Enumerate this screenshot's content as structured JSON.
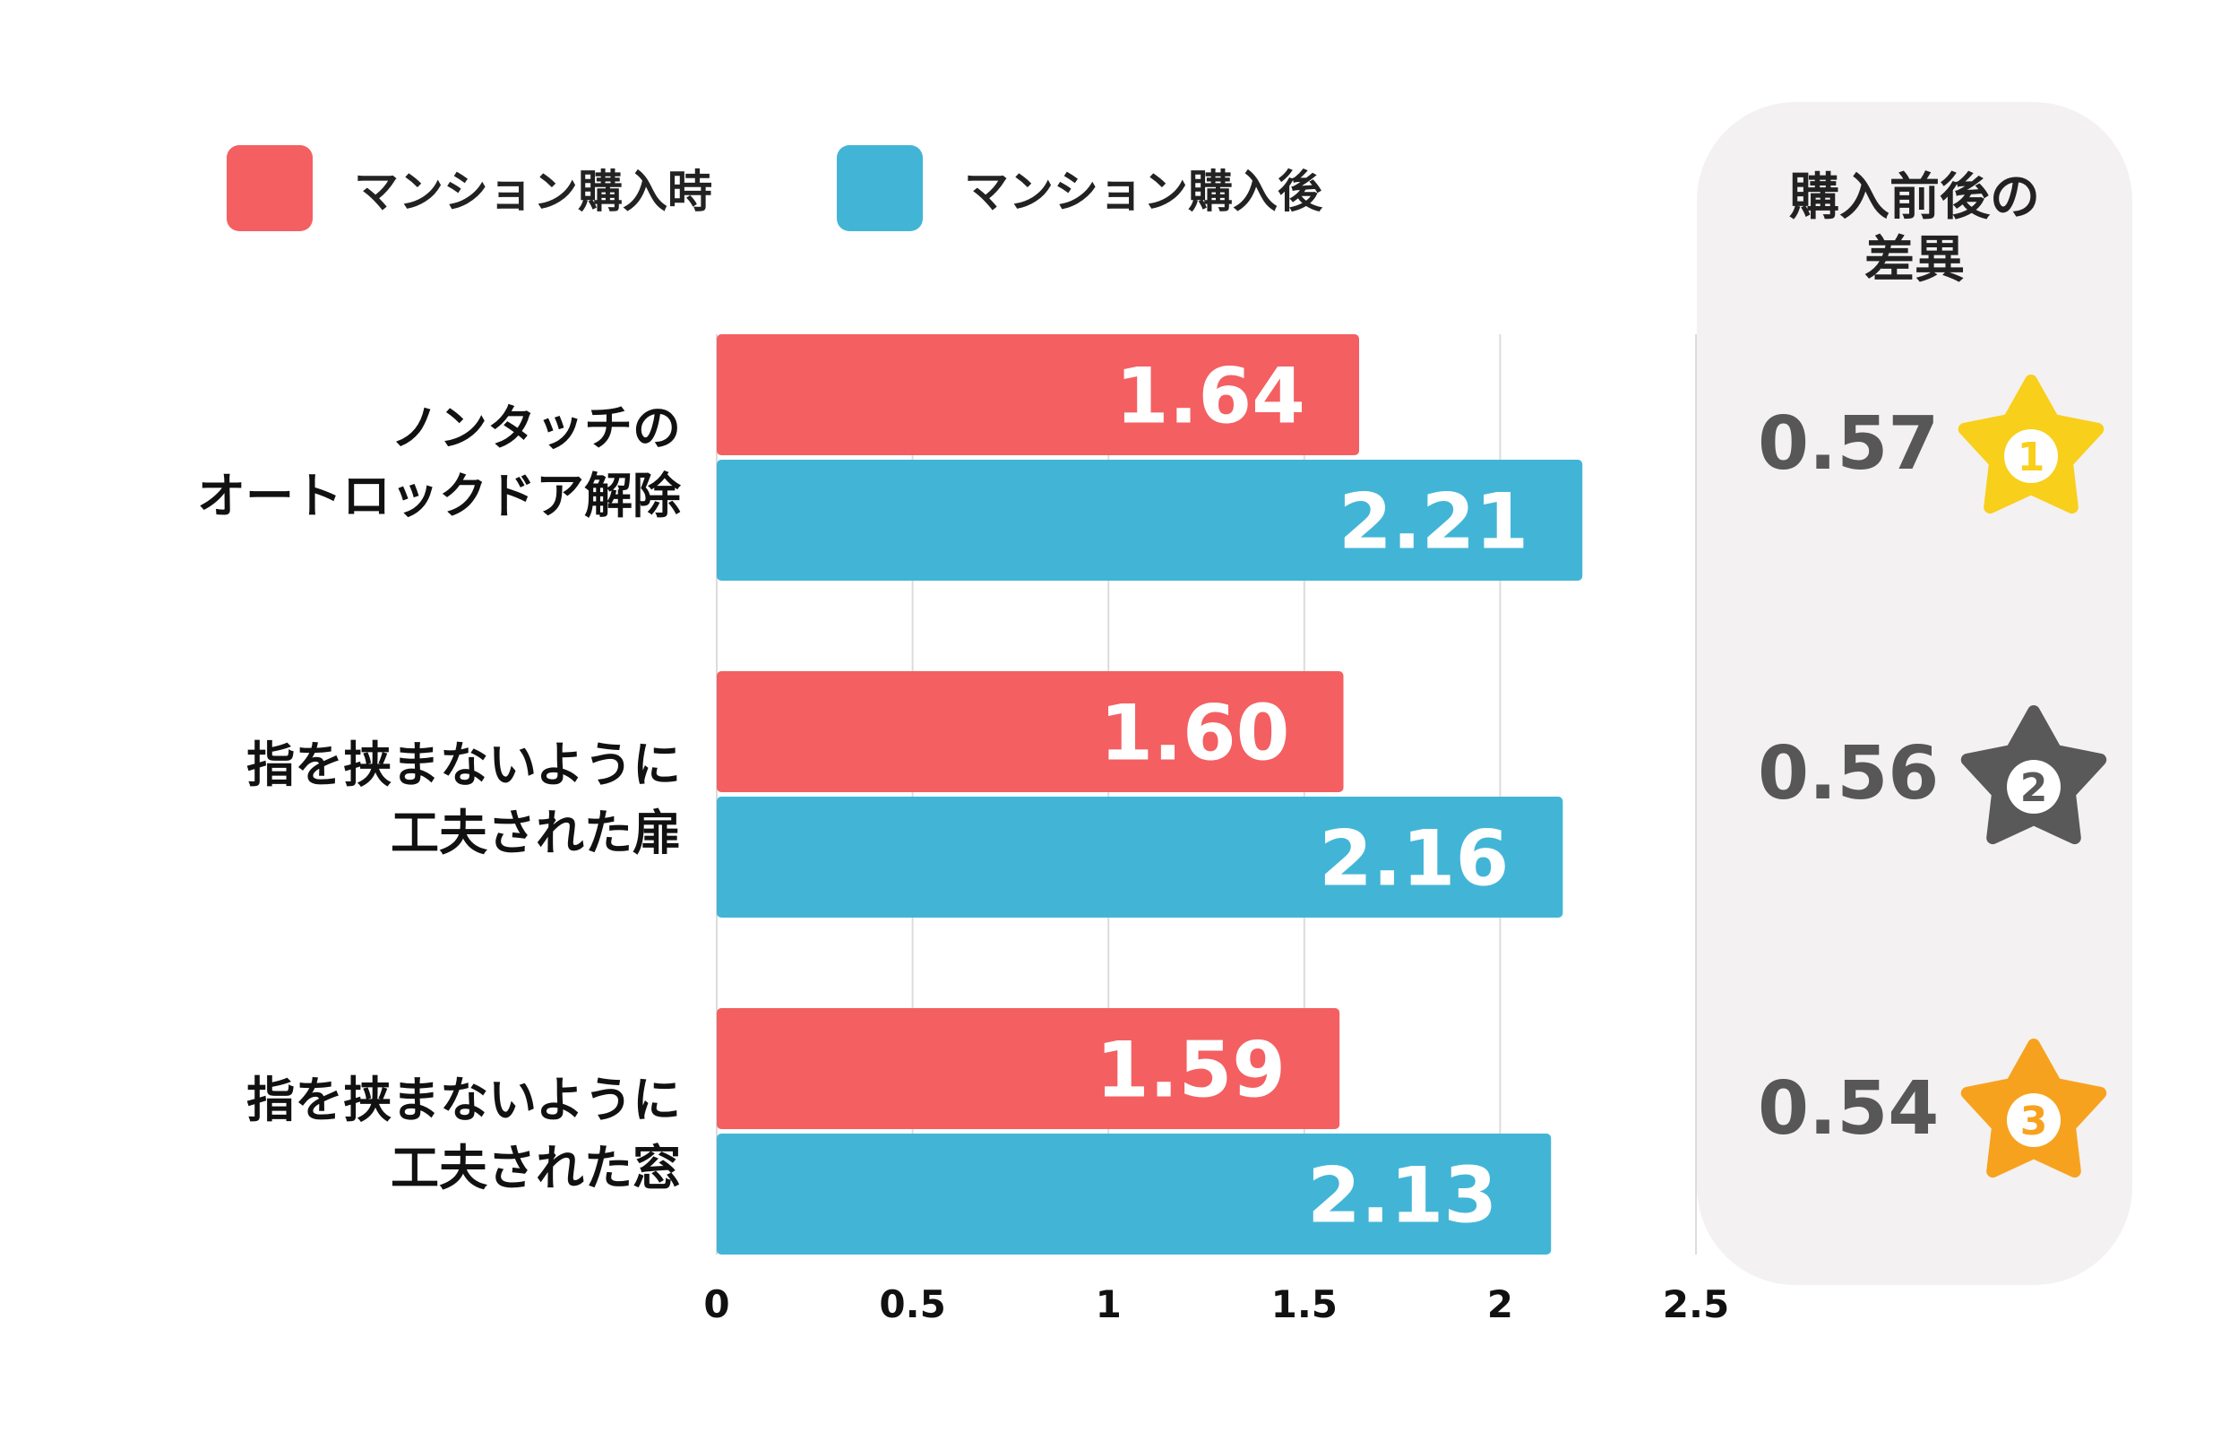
{
  "legend": [
    {
      "label": "マンション購入時",
      "color": "#f45f62"
    },
    {
      "label": "マンション購入後",
      "color": "#42b5d6"
    }
  ],
  "chart_data": {
    "type": "bar",
    "orientation": "horizontal",
    "categories": [
      [
        "ノンタッチの",
        "オートロックドア解除"
      ],
      [
        "指を挟まないように",
        "工夫された扉"
      ],
      [
        "指を挟まないように",
        "工夫された窓"
      ]
    ],
    "series": [
      {
        "name": "マンション購入時",
        "values": [
          1.64,
          1.6,
          1.59
        ],
        "labels": [
          "1.64",
          "1.60",
          "1.59"
        ],
        "color": "#f45f62"
      },
      {
        "name": "マンション購入後",
        "values": [
          2.21,
          2.16,
          2.13
        ],
        "labels": [
          "2.21",
          "2.16",
          "2.13"
        ],
        "color": "#42b5d6"
      }
    ],
    "xlim": [
      0,
      2.5
    ],
    "xticks": [
      "0",
      "0.5",
      "1",
      "1.5",
      "2",
      "2.5"
    ],
    "grid": true,
    "legend_position": "top-left"
  },
  "difference_panel": {
    "title": [
      "購入前後の",
      "差異"
    ],
    "items": [
      {
        "value": "0.57",
        "rank": "1",
        "star_color": "#f8cf1a",
        "number_color": "#f8cf1a"
      },
      {
        "value": "0.56",
        "rank": "2",
        "star_color": "#595959",
        "number_color": "#595959"
      },
      {
        "value": "0.54",
        "rank": "3",
        "star_color": "#f7a21e",
        "number_color": "#f7a21e"
      }
    ]
  }
}
